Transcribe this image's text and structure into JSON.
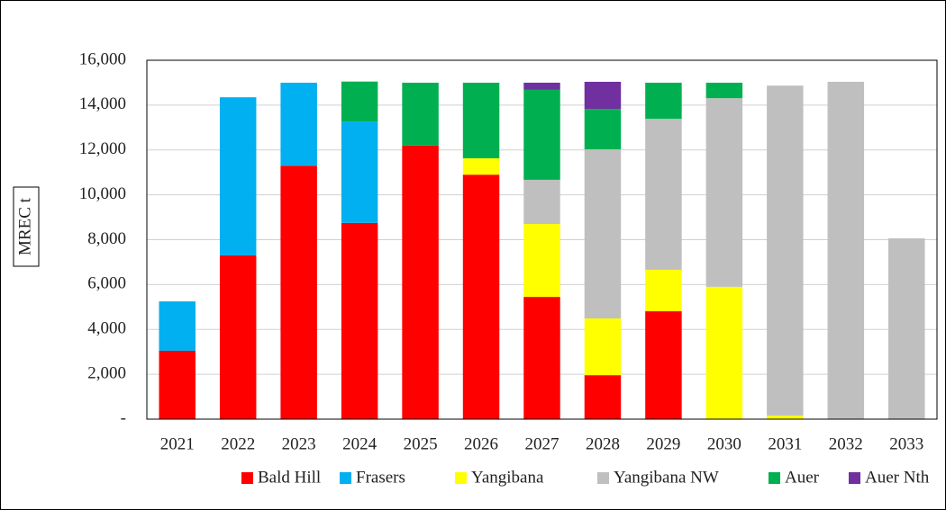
{
  "chart_data": {
    "type": "stacked_bar",
    "y_label": "MREC t",
    "categories": [
      "2021",
      "2022",
      "2023",
      "2024",
      "2025",
      "2026",
      "2027",
      "2028",
      "2029",
      "2030",
      "2031",
      "2032",
      "2033"
    ],
    "series": [
      {
        "name": "Bald Hill",
        "color": "#ff0000",
        "values": [
          3050,
          7300,
          11300,
          8750,
          12200,
          10900,
          5450,
          1960,
          4810,
          0,
          0,
          0,
          0
        ]
      },
      {
        "name": "Frasers",
        "color": "#00b0f0",
        "values": [
          2200,
          7050,
          3700,
          4520,
          0,
          0,
          0,
          0,
          0,
          0,
          0,
          0,
          0
        ]
      },
      {
        "name": "Yangibana",
        "color": "#ffff00",
        "values": [
          0,
          0,
          0,
          0,
          0,
          730,
          3250,
          2530,
          1850,
          5900,
          160,
          0,
          0
        ]
      },
      {
        "name": "Yangibana NW",
        "color": "#bfbfbf",
        "values": [
          0,
          0,
          0,
          0,
          0,
          0,
          1970,
          7540,
          6730,
          8410,
          14710,
          15040,
          8060
        ]
      },
      {
        "name": "Auer",
        "color": "#00b050",
        "values": [
          0,
          0,
          0,
          1780,
          2800,
          3370,
          4010,
          1800,
          1610,
          690,
          0,
          0,
          0
        ]
      },
      {
        "name": "Auer Nth",
        "color": "#7030a0",
        "values": [
          0,
          0,
          0,
          0,
          0,
          0,
          320,
          1210,
          0,
          0,
          0,
          0,
          0
        ]
      }
    ],
    "ylim": [
      0,
      16000
    ],
    "yticks": [
      {
        "value": 0,
        "label": "-"
      },
      {
        "value": 2000,
        "label": "2,000"
      },
      {
        "value": 4000,
        "label": "4,000"
      },
      {
        "value": 6000,
        "label": "6,000"
      },
      {
        "value": 8000,
        "label": "8,000"
      },
      {
        "value": 10000,
        "label": "10,000"
      },
      {
        "value": 12000,
        "label": "12,000"
      },
      {
        "value": 14000,
        "label": "14,000"
      },
      {
        "value": 16000,
        "label": "16,000"
      }
    ],
    "grid": true,
    "legend": "bottom"
  }
}
